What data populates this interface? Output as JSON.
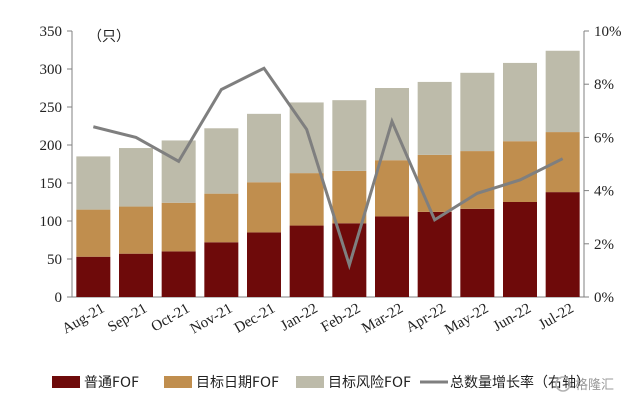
{
  "chart_data": {
    "type": "bar",
    "stacked": true,
    "categories": [
      "Aug-21",
      "Sep-21",
      "Oct-21",
      "Nov-21",
      "Dec-21",
      "Jan-22",
      "Feb-22",
      "Mar-22",
      "Apr-22",
      "May-22",
      "Jun-22",
      "Jul-22"
    ],
    "series": [
      {
        "name": "普通FOF",
        "values": [
          53,
          57,
          60,
          72,
          85,
          94,
          97,
          106,
          112,
          116,
          125,
          138
        ],
        "color": "#6e0a0a"
      },
      {
        "name": "目标日期FOF",
        "values": [
          62,
          62,
          64,
          64,
          66,
          69,
          69,
          74,
          75,
          76,
          80,
          79
        ],
        "color": "#c08e4e"
      },
      {
        "name": "目标风险FOF",
        "values": [
          70,
          77,
          82,
          86,
          90,
          93,
          93,
          95,
          96,
          103,
          103,
          107
        ],
        "color": "#bdbbaa"
      }
    ],
    "line_series": {
      "name": "总数量增长率（右轴）",
      "values": [
        6.4,
        6.0,
        5.1,
        7.8,
        8.6,
        6.3,
        1.2,
        6.6,
        2.9,
        3.9,
        4.4,
        5.2
      ],
      "color": "#7f7f7f"
    },
    "y_left": {
      "unit_label": "（只）",
      "ticks": [
        "0",
        "50",
        "100",
        "150",
        "200",
        "250",
        "300",
        "350"
      ],
      "ylim": [
        0,
        350
      ]
    },
    "y_right": {
      "ticks": [
        "0%",
        "2%",
        "4%",
        "6%",
        "8%",
        "10%"
      ],
      "ylim": [
        0,
        10
      ]
    },
    "legend_position": "bottom",
    "grid": false
  },
  "watermark": "格隆汇"
}
